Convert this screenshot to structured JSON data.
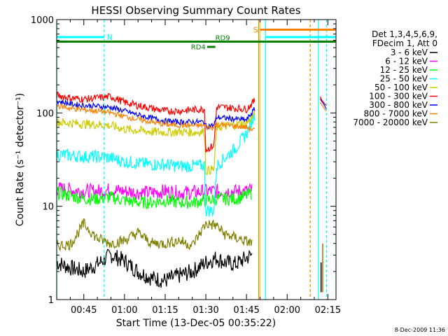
{
  "chart_data": {
    "type": "line",
    "title": "HESSI Observing Summary Count Rates",
    "xlabel": "Start Time (13-Dec-05 00:35:22)",
    "ylabel": "Count Rate (s⁻¹ detector⁻¹)",
    "ylog": true,
    "ylim": [
      1,
      1000
    ],
    "xlim_minutes_after_0035": [
      0,
      103
    ],
    "x_tick_labels": [
      "00:45",
      "01:00",
      "01:15",
      "01:30",
      "01:45",
      "02:00",
      "02:15"
    ],
    "x_ticks_minutes": [
      10,
      25,
      40,
      55,
      70,
      85,
      100
    ],
    "y_tick_labels": [
      "1",
      "10",
      "100",
      "1000"
    ],
    "y_ticks": [
      1,
      10,
      100,
      1000
    ],
    "legend_header": [
      "Det 1,3,4,5,6,9,",
      "FDecim 1, Att 0"
    ],
    "legend_position": "right",
    "series": [
      {
        "name": "3 - 6 keV",
        "color": "#000000",
        "x": [
          0,
          5,
          10,
          15,
          20,
          25,
          30,
          35,
          40,
          45,
          50,
          55,
          59,
          62,
          66,
          70,
          72
        ],
        "y": [
          2.5,
          2.2,
          2.0,
          2.4,
          3.0,
          2.6,
          2.0,
          1.7,
          1.6,
          1.8,
          2.0,
          2.5,
          2.8,
          2.5,
          2.4,
          2.8,
          3.0
        ]
      },
      {
        "name": "6 - 12 keV",
        "color": "#ff00ff",
        "x": [
          0,
          5,
          10,
          15,
          20,
          25,
          30,
          35,
          40,
          45,
          50,
          55,
          59,
          62,
          66,
          70,
          72
        ],
        "y": [
          15.5,
          15,
          14.5,
          14.5,
          15,
          14.5,
          14,
          14,
          14.5,
          14,
          14,
          14.5,
          14.5,
          14.5,
          14.5,
          14.5,
          15
        ]
      },
      {
        "name": "12 - 25 keV",
        "color": "#00ff00",
        "x": [
          0,
          5,
          10,
          15,
          20,
          25,
          30,
          35,
          40,
          45,
          50,
          55,
          59,
          62,
          66,
          70,
          72
        ],
        "y": [
          14,
          13,
          12,
          12,
          12.5,
          11.5,
          11,
          11,
          11.5,
          11,
          11,
          11.5,
          12,
          12,
          12,
          13,
          14
        ]
      },
      {
        "name": "25 - 50 keV",
        "color": "#00ffff",
        "x": [
          0,
          5,
          10,
          15,
          20,
          25,
          30,
          35,
          40,
          45,
          50,
          54.5,
          55,
          58,
          59,
          62,
          66,
          70,
          73
        ],
        "y": [
          36,
          35,
          34,
          34,
          33,
          30,
          29,
          28,
          28,
          27,
          27,
          27.5,
          9,
          9,
          27,
          33,
          42,
          60,
          95
        ]
      },
      {
        "name": "50 - 100 keV",
        "color": "#cccc00",
        "x": [
          0,
          5,
          10,
          15,
          20,
          25,
          30,
          35,
          40,
          45,
          50,
          54.5,
          55,
          58,
          59,
          62,
          66,
          70,
          73
        ],
        "y": [
          80,
          78,
          76,
          75,
          73,
          67,
          65,
          63,
          62,
          63,
          62,
          63,
          24,
          25,
          70,
          72,
          75,
          78,
          95
        ]
      },
      {
        "name": "100 - 300 keV",
        "color": "#ff0000",
        "x": [
          0,
          5,
          10,
          15,
          20,
          25,
          30,
          35,
          40,
          45,
          50,
          54.5,
          55,
          58,
          59,
          62,
          66,
          70,
          73
        ],
        "y": [
          155,
          145,
          140,
          145,
          150,
          130,
          120,
          112,
          105,
          105,
          108,
          110,
          40,
          45,
          115,
          115,
          112,
          110,
          135
        ]
      },
      {
        "name": "300 - 800 keV",
        "color": "#0000ff",
        "x": [
          0,
          5,
          10,
          15,
          20,
          25,
          30,
          35,
          40,
          45,
          50,
          54.5,
          55,
          58,
          59,
          62,
          66,
          70,
          73
        ],
        "y": [
          135,
          125,
          120,
          118,
          115,
          105,
          95,
          88,
          82,
          80,
          80,
          80,
          72,
          74,
          90,
          88,
          86,
          84,
          110
        ]
      },
      {
        "name": "800 - 7000 keV",
        "color": "#ff8000",
        "x": [
          0,
          5,
          10,
          15,
          20,
          25,
          30,
          35,
          40,
          45,
          50,
          54.5,
          55,
          58,
          59,
          62,
          66,
          70,
          73
        ],
        "y": [
          120,
          112,
          108,
          105,
          100,
          92,
          85,
          80,
          75,
          74,
          73,
          73,
          70,
          70,
          75,
          74,
          72,
          70,
          65
        ]
      },
      {
        "name": "7000 - 20000 keV",
        "color": "#808000",
        "x": [
          0,
          5,
          10,
          15,
          20,
          25,
          30,
          35,
          40,
          45,
          50,
          55,
          59,
          62,
          66,
          70,
          72
        ],
        "y": [
          3.8,
          3.9,
          6.5,
          4.5,
          4.0,
          4.3,
          5.2,
          4.0,
          4.0,
          4.3,
          3.8,
          6.5,
          6.2,
          5.0,
          4.6,
          4.2,
          4.0
        ]
      }
    ],
    "annotations": [
      {
        "label": "N",
        "color": "#00ffff"
      },
      {
        "label": "S",
        "color": "#ff8000"
      },
      {
        "label": "RD4",
        "color": "#008000"
      },
      {
        "label": "RD9",
        "color": "#008000"
      }
    ],
    "timestamp": "8-Dec-2009 11:36"
  }
}
